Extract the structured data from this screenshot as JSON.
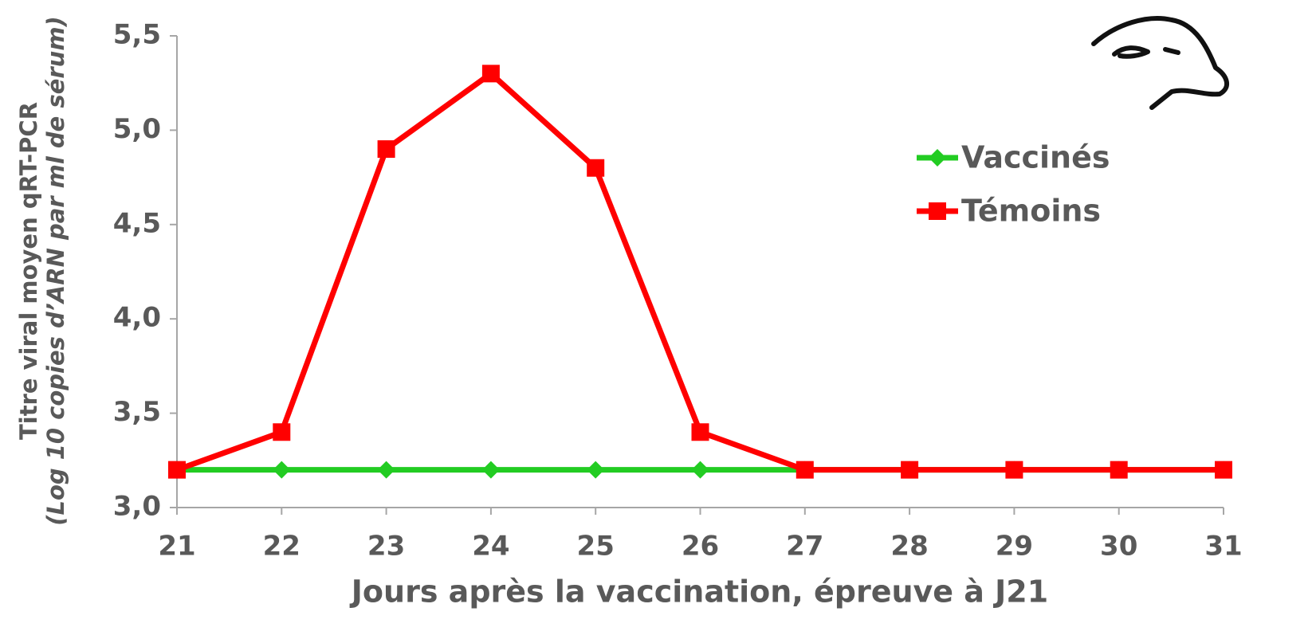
{
  "chart_data": {
    "type": "line",
    "x_label": "Jours après la vaccination, épreuve à J21",
    "y_label": [
      "Titre viral moyen qRT-PCR",
      "(Log 10 copies d’ARN par ml de sérum)"
    ],
    "x": [
      21,
      22,
      23,
      24,
      25,
      26,
      27,
      28,
      29,
      30,
      31
    ],
    "series": [
      {
        "name": "Vaccinés",
        "color": "#22cc22",
        "marker": "diamond",
        "values": [
          3.2,
          3.2,
          3.2,
          3.2,
          3.2,
          3.2,
          3.2,
          3.2,
          3.2,
          3.2,
          3.2
        ]
      },
      {
        "name": "Témoins",
        "color": "#ff0000",
        "marker": "square",
        "values": [
          3.2,
          3.4,
          4.9,
          5.3,
          4.8,
          3.4,
          3.2,
          3.2,
          3.2,
          3.2,
          3.2
        ]
      }
    ],
    "xlim": [
      21,
      31
    ],
    "xticks": [
      21,
      22,
      23,
      24,
      25,
      26,
      27,
      28,
      29,
      30,
      31
    ],
    "ylim": [
      3.0,
      5.5
    ],
    "yticks": [
      {
        "value": 3.0,
        "label": "3,0"
      },
      {
        "value": 3.5,
        "label": "3,5"
      },
      {
        "value": 4.0,
        "label": "4,0"
      },
      {
        "value": 4.5,
        "label": "4,5"
      },
      {
        "value": 5.0,
        "label": "5,0"
      },
      {
        "value": 5.5,
        "label": "5,5"
      }
    ],
    "grid": false,
    "legend_position": "upper right"
  }
}
